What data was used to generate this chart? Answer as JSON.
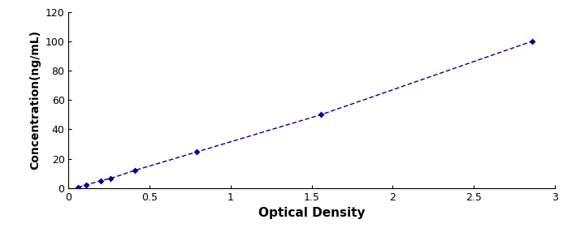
{
  "x_data": [
    0.058,
    0.108,
    0.198,
    0.258,
    0.408,
    0.788,
    1.558,
    2.858
  ],
  "y_data": [
    0.5,
    2.0,
    5.0,
    6.5,
    12.0,
    24.5,
    50.0,
    100.0
  ],
  "line_color": "#00008B",
  "marker_color": "#00008B",
  "marker_style": "D",
  "marker_size": 4,
  "line_width": 1.0,
  "xlabel": "Optical Density",
  "ylabel": "Concentration(ng/mL)",
  "xlim": [
    0,
    3.0
  ],
  "ylim": [
    0,
    120
  ],
  "xticks": [
    0,
    0.5,
    1,
    1.5,
    2,
    2.5,
    3
  ],
  "yticks": [
    0,
    20,
    40,
    60,
    80,
    100,
    120
  ],
  "background_color": "#ffffff",
  "plot_bg_color": "#ffffff",
  "xlabel_fontsize": 11,
  "ylabel_fontsize": 10,
  "tick_fontsize": 9,
  "spine_color": "#000000"
}
